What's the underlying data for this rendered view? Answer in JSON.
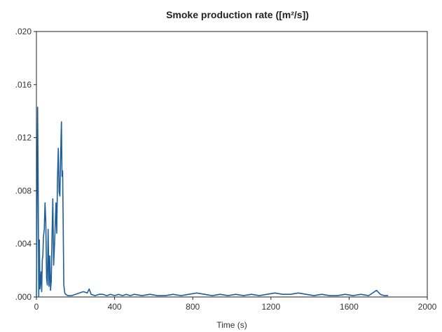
{
  "chart_data": {
    "type": "line",
    "title": "Smoke production rate ([m²/s])",
    "xlabel": "Time (s)",
    "ylabel": "",
    "xlim": [
      0,
      2000
    ],
    "ylim": [
      0,
      0.02
    ],
    "x_ticks": [
      0,
      400,
      800,
      1200,
      1600,
      2000
    ],
    "x_tick_labels": [
      "0",
      "400",
      "800",
      "1200",
      "1600",
      "2000"
    ],
    "y_ticks": [
      0,
      0.004,
      0.008,
      0.012,
      0.016,
      0.02
    ],
    "y_tick_labels": [
      ".000",
      ".004",
      ".008",
      ".012",
      ".016",
      ".020"
    ],
    "grid": false,
    "legend": "none",
    "line_color": "#1f5f99",
    "series": [
      {
        "x": [
          0,
          3,
          6,
          9,
          12,
          15,
          18,
          21,
          24,
          27,
          30,
          33,
          36,
          40,
          44,
          48,
          52,
          56,
          60,
          64,
          68,
          72,
          76,
          80,
          84,
          88,
          92,
          96,
          100,
          104,
          108,
          112,
          116,
          120,
          124,
          128,
          131,
          134,
          137,
          140,
          145,
          150,
          160,
          180,
          200,
          220,
          240,
          260,
          270,
          280,
          300,
          320,
          340,
          360,
          380,
          400,
          420,
          440,
          460,
          480,
          500,
          540,
          580,
          620,
          660,
          700,
          740,
          780,
          820,
          860,
          900,
          940,
          980,
          1020,
          1060,
          1100,
          1140,
          1180,
          1220,
          1260,
          1300,
          1340,
          1380,
          1420,
          1460,
          1500,
          1540,
          1580,
          1620,
          1660,
          1700,
          1720,
          1740,
          1760,
          1780,
          1800
        ],
        "y": [
          0.0,
          0.0066,
          0.0143,
          0.0085,
          0.0,
          0.0043,
          0.0006,
          0.0012,
          0.0019,
          0.0004,
          0.0028,
          0.0031,
          0.0045,
          0.0051,
          0.0071,
          0.0056,
          0.0014,
          0.0009,
          0.0051,
          0.0008,
          0.0031,
          0.0005,
          0.0012,
          0.0047,
          0.0074,
          0.0024,
          0.0038,
          0.0053,
          0.0071,
          0.0048,
          0.0089,
          0.0112,
          0.0079,
          0.0076,
          0.0108,
          0.0132,
          0.0091,
          0.0095,
          0.0055,
          0.0009,
          0.0003,
          0.0002,
          0.0001,
          0.0001,
          0.0002,
          0.0003,
          0.0004,
          0.0003,
          0.0006,
          0.0002,
          0.0001,
          0.0002,
          0.0002,
          0.0001,
          0.0002,
          0.0001,
          0.0002,
          0.0001,
          0.0002,
          0.0001,
          0.0002,
          0.0001,
          0.0002,
          0.0001,
          0.0001,
          0.0002,
          0.0001,
          0.0002,
          0.0003,
          0.0002,
          0.0001,
          0.0002,
          0.0001,
          0.0002,
          0.0001,
          0.0002,
          0.0001,
          0.0002,
          0.0003,
          0.0002,
          0.0002,
          0.0003,
          0.0002,
          0.0001,
          0.0002,
          0.0001,
          0.0001,
          0.0002,
          0.0001,
          0.0002,
          0.0001,
          0.0003,
          0.0005,
          0.0002,
          0.0001,
          0.0001
        ]
      }
    ]
  }
}
